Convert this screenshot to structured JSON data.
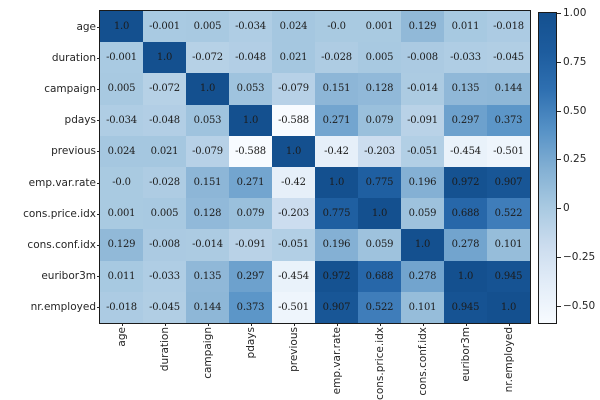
{
  "figure": {
    "title": "",
    "background_color": "#ffffff",
    "axis_text_color": "#262626",
    "annotation_text_color": "#1c1c1c"
  },
  "chart_data": {
    "type": "heatmap",
    "subtype": "correlation-matrix",
    "title": "",
    "xlabel": "",
    "ylabel": "",
    "grid": false,
    "legend_position": "colorbar-right",
    "labels": [
      "age",
      "duration",
      "campaign",
      "pdays",
      "previous",
      "emp.var.rate",
      "cons.price.idx",
      "cons.conf.idx",
      "euribor3m",
      "nr.employed"
    ],
    "matrix": [
      [
        "1.0",
        "-0.001",
        "0.005",
        "-0.034",
        "0.024",
        "-0.0",
        "0.001",
        "0.129",
        "0.011",
        "-0.018"
      ],
      [
        "-0.001",
        "1.0",
        "-0.072",
        "-0.048",
        "0.021",
        "-0.028",
        "0.005",
        "-0.008",
        "-0.033",
        "-0.045"
      ],
      [
        "0.005",
        "-0.072",
        "1.0",
        "0.053",
        "-0.079",
        "0.151",
        "0.128",
        "-0.014",
        "0.135",
        "0.144"
      ],
      [
        "-0.034",
        "-0.048",
        "0.053",
        "1.0",
        "-0.588",
        "0.271",
        "0.079",
        "-0.091",
        "0.297",
        "0.373"
      ],
      [
        "0.024",
        "0.021",
        "-0.079",
        "-0.588",
        "1.0",
        "-0.42",
        "-0.203",
        "-0.051",
        "-0.454",
        "-0.501"
      ],
      [
        "-0.0",
        "-0.028",
        "0.151",
        "0.271",
        "-0.42",
        "1.0",
        "0.775",
        "0.196",
        "0.972",
        "0.907"
      ],
      [
        "0.001",
        "0.005",
        "0.128",
        "0.079",
        "-0.203",
        "0.775",
        "1.0",
        "0.059",
        "0.688",
        "0.522"
      ],
      [
        "0.129",
        "-0.008",
        "-0.014",
        "-0.091",
        "-0.051",
        "0.196",
        "0.059",
        "1.0",
        "0.278",
        "0.101"
      ],
      [
        "0.011",
        "-0.033",
        "0.135",
        "0.297",
        "-0.454",
        "0.972",
        "0.688",
        "0.278",
        "1.0",
        "0.945"
      ],
      [
        "-0.018",
        "-0.045",
        "0.144",
        "0.373",
        "-0.501",
        "0.907",
        "0.522",
        "0.101",
        "0.945",
        "1.0"
      ]
    ],
    "vmin": -0.588,
    "vmax": 1.0,
    "colormap": {
      "name": "Blues",
      "anchors": [
        {
          "t": 0.0,
          "color": "#f7fbff"
        },
        {
          "t": 0.125,
          "color": "#e3edf8"
        },
        {
          "t": 0.25,
          "color": "#cbdcee"
        },
        {
          "t": 0.375,
          "color": "#a8c9e1"
        },
        {
          "t": 0.5,
          "color": "#82afd3"
        },
        {
          "t": 0.625,
          "color": "#5591c6"
        },
        {
          "t": 0.75,
          "color": "#2f70b1"
        },
        {
          "t": 0.875,
          "color": "#1d5c9e"
        },
        {
          "t": 1.0,
          "color": "#14508f"
        }
      ]
    },
    "colorbar": {
      "tick_labels": [
        "1.00",
        "0.75",
        "0.50",
        "0.25",
        "0",
        "−0.25",
        "−0.50"
      ],
      "tick_values": [
        1.0,
        0.75,
        0.5,
        0.25,
        0.0,
        -0.25,
        -0.5
      ]
    },
    "x_tick_rotation": 90
  }
}
